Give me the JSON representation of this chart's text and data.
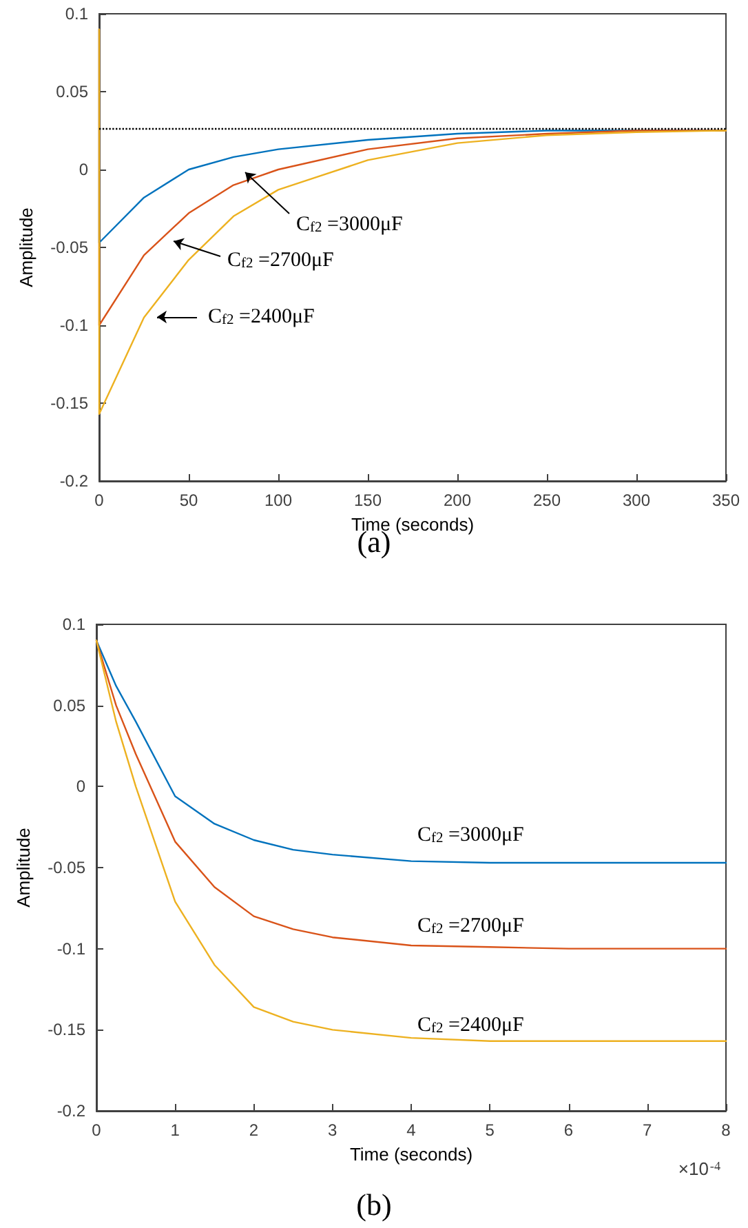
{
  "chart_data": [
    {
      "type": "line",
      "subtitle": "(a)",
      "xlabel": "Time (seconds)",
      "ylabel": "Amplitude",
      "x": [
        0,
        0,
        25,
        50,
        75,
        100,
        150,
        200,
        250,
        300,
        350
      ],
      "xlim": [
        0,
        350
      ],
      "xticks": [
        0,
        50,
        100,
        150,
        200,
        250,
        300,
        350
      ],
      "ylim": [
        -0.2,
        0.1
      ],
      "yticks": [
        -0.2,
        -0.15,
        -0.1,
        -0.05,
        0,
        0.05,
        0.1
      ],
      "marker": "none",
      "line_style": "solid",
      "series": [
        {
          "color": "#0072bd",
          "values": [
            0.09,
            -0.047,
            -0.018,
            0.0,
            0.008,
            0.013,
            0.019,
            0.023,
            0.025,
            0.025,
            0.025
          ]
        },
        {
          "color": "#d95319",
          "values": [
            0.09,
            -0.1,
            -0.055,
            -0.028,
            -0.01,
            0.0,
            0.013,
            0.02,
            0.023,
            0.025,
            0.025
          ]
        },
        {
          "color": "#edb120",
          "values": [
            0.09,
            -0.157,
            -0.095,
            -0.058,
            -0.03,
            -0.013,
            0.006,
            0.017,
            0.022,
            0.024,
            0.025
          ]
        }
      ],
      "ref_lines": [
        {
          "axis": "y",
          "value": 0.026,
          "color": "#000000",
          "line_style": "dotted"
        }
      ],
      "annotations": [
        "C$_{f2}$=3000μF",
        "C$_{f2}$=2700μF",
        "C$_{f2}$=2400μF"
      ]
    },
    {
      "type": "line",
      "subtitle": "(b)",
      "xlabel": "Time (seconds)",
      "ylabel": "Amplitude",
      "x": [
        0,
        0.25,
        0.5,
        1,
        1.5,
        2,
        2.5,
        3,
        4,
        5,
        6,
        8
      ],
      "xlim": [
        0,
        8
      ],
      "xticks": [
        0,
        1,
        2,
        3,
        4,
        5,
        6,
        7,
        8
      ],
      "ylim": [
        -0.2,
        0.1
      ],
      "yticks": [
        -0.2,
        -0.15,
        -0.1,
        -0.05,
        0,
        0.05,
        0.1
      ],
      "marker": "none",
      "line_style": "solid",
      "series": [
        {
          "color": "#0072bd",
          "values": [
            0.09,
            0.062,
            0.04,
            -0.006,
            -0.023,
            -0.033,
            -0.039,
            -0.042,
            -0.046,
            -0.047,
            -0.047,
            -0.047
          ]
        },
        {
          "color": "#d95319",
          "values": [
            0.09,
            0.05,
            0.02,
            -0.034,
            -0.062,
            -0.08,
            -0.088,
            -0.093,
            -0.098,
            -0.099,
            -0.1,
            -0.1
          ]
        },
        {
          "color": "#edb120",
          "values": [
            0.09,
            0.04,
            0.0,
            -0.071,
            -0.11,
            -0.136,
            -0.145,
            -0.15,
            -0.155,
            -0.157,
            -0.157,
            -0.157
          ]
        }
      ],
      "annotations": [
        "C$_{f2}$=3000μF",
        "C$_{f2}$=2700μF",
        "C$_{f2}$=2400μF",
        "×10$^{-4}$"
      ]
    }
  ]
}
